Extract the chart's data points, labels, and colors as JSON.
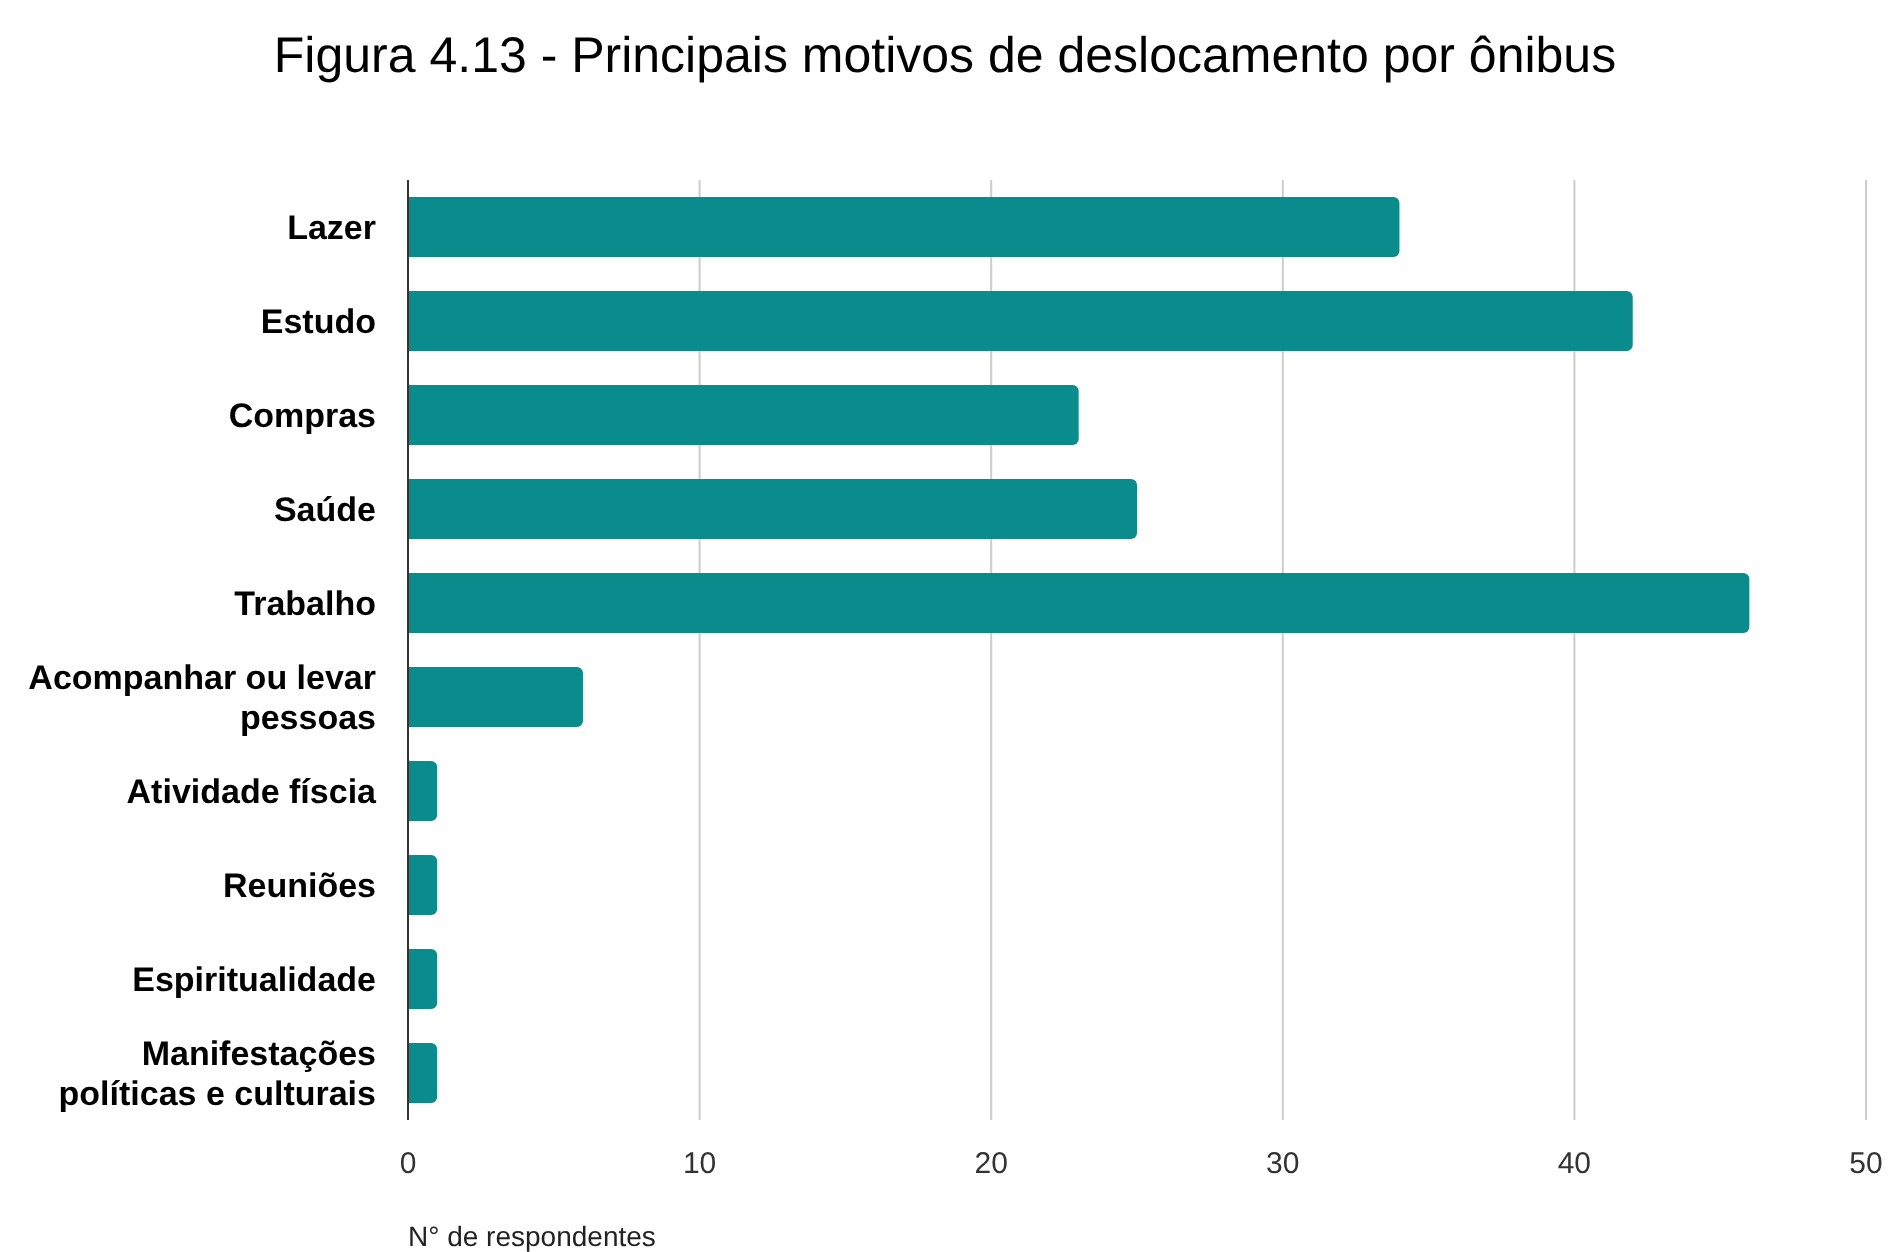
{
  "chart_data": {
    "type": "bar",
    "orientation": "horizontal",
    "title": "Figura 4.13 - Principais motivos de deslocamento por ônibus",
    "xlabel": "N° de respondentes",
    "categories": [
      "Lazer",
      "Estudo",
      "Compras",
      "Saúde",
      "Trabalho",
      "Acompanhar ou levar pessoas",
      "Atividade físcia",
      "Reuniões",
      "Espiritualidade",
      "Manifestações políticas e culturais"
    ],
    "values": [
      34,
      42,
      23,
      25,
      46,
      6,
      1,
      1,
      1,
      1
    ],
    "color": "#0b8c8c",
    "xlim": [
      0,
      50
    ],
    "xticks": [
      0,
      10,
      20,
      30,
      40,
      50
    ],
    "grid": "x"
  }
}
